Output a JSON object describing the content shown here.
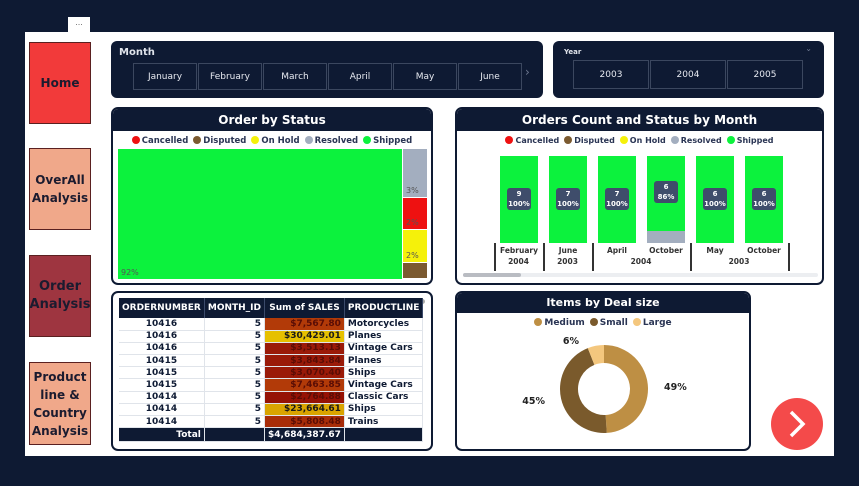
{
  "more_label": "...",
  "nav": [
    {
      "label": "Home",
      "color": "#f23a3a"
    },
    {
      "label": "OverAll Analysis",
      "color": "#f0a88a"
    },
    {
      "label": "Order Analysis",
      "color": "#9e3540"
    },
    {
      "label": "Product line & Country Analysis",
      "color": "#f0a88a"
    }
  ],
  "month_slicer": {
    "title": "Month",
    "options": [
      "January",
      "February",
      "March",
      "April",
      "May",
      "June"
    ],
    "next_icon": "chevron-right"
  },
  "year_slicer": {
    "title": "Year",
    "options": [
      "2003",
      "2004",
      "2005"
    ]
  },
  "status_colors": {
    "Cancelled": "#ee1111",
    "Disputed": "#7b5a30",
    "On Hold": "#f5f10a",
    "Resolved": "#a3aebf",
    "Shipped": "#0cf23d"
  },
  "order_by_status": {
    "title": "Order by Status",
    "legend": [
      "Cancelled",
      "Disputed",
      "On Hold",
      "Resolved",
      "Shipped"
    ],
    "chart_data": {
      "type": "treemap",
      "items": [
        {
          "name": "Shipped",
          "pct": 92,
          "label": "92%"
        },
        {
          "name": "Resolved",
          "pct": 3,
          "label": "3%"
        },
        {
          "name": "Cancelled",
          "pct": 2,
          "label": "2%"
        },
        {
          "name": "On Hold",
          "pct": 2,
          "label": "2%"
        },
        {
          "name": "Disputed",
          "pct": 1,
          "label": ""
        }
      ]
    }
  },
  "orders_by_month": {
    "title": "Orders Count and Status by Month",
    "legend": [
      "Cancelled",
      "Disputed",
      "On Hold",
      "Resolved",
      "Shipped"
    ],
    "chart_data": {
      "type": "bar",
      "stacked": true,
      "categories": [
        {
          "month": "February",
          "year": "2004"
        },
        {
          "month": "June",
          "year": "2003"
        },
        {
          "month": "April",
          "year": "2004"
        },
        {
          "month": "October",
          "year": "2004"
        },
        {
          "month": "May",
          "year": "2003"
        },
        {
          "month": "October",
          "year": "2003"
        }
      ],
      "year_groups": [
        {
          "year": "2004",
          "span": 1
        },
        {
          "year": "2003",
          "span": 1
        },
        {
          "year": "2004",
          "span": 2
        },
        {
          "year": "2003",
          "span": 2
        }
      ],
      "shipped_count": [
        9,
        7,
        7,
        6,
        6,
        6
      ],
      "shipped_pct": [
        "100%",
        "100%",
        "100%",
        "86%",
        "100%",
        "100%"
      ],
      "resolved_share": [
        0,
        0,
        0,
        0.14,
        0,
        0
      ]
    }
  },
  "sales_table": {
    "columns": [
      "ORDERNUMBER",
      "MONTH_ID",
      "Sum of SALES",
      "PRODUCTLINE"
    ],
    "rows": [
      [
        "10416",
        "5",
        "$7,567.80",
        "Motorcycles",
        "#b23a08"
      ],
      [
        "10416",
        "5",
        "$30,429.01",
        "Planes",
        "#e6c000"
      ],
      [
        "10416",
        "5",
        "$3,513.13",
        "Vintage Cars",
        "#9a1a08"
      ],
      [
        "10415",
        "5",
        "$3,843.84",
        "Planes",
        "#9a1a08"
      ],
      [
        "10415",
        "5",
        "$3,070.40",
        "Ships",
        "#9a1a08"
      ],
      [
        "10415",
        "5",
        "$7,463.85",
        "Vintage Cars",
        "#b23a08"
      ],
      [
        "10414",
        "5",
        "$2,764.88",
        "Classic Cars",
        "#951205"
      ],
      [
        "10414",
        "5",
        "$23,664.61",
        "Ships",
        "#d9a400"
      ],
      [
        "10414",
        "5",
        "$5,808.48",
        "Trains",
        "#a82c08"
      ]
    ],
    "total_label": "Total",
    "total_sales": "$4,684,387.67"
  },
  "deal_size": {
    "title": "Items by Deal size",
    "chart_data": {
      "type": "pie",
      "donut": true,
      "slices": [
        {
          "name": "Medium",
          "value": 49,
          "label": "49%",
          "color": "#be8f44"
        },
        {
          "name": "Small",
          "value": 45,
          "label": "45%",
          "color": "#7a5a2c"
        },
        {
          "name": "Large",
          "value": 6,
          "label": "6%",
          "color": "#f4c77e"
        }
      ]
    }
  },
  "next_button": {
    "icon": "chevron-right",
    "color": "#f44a4a"
  }
}
